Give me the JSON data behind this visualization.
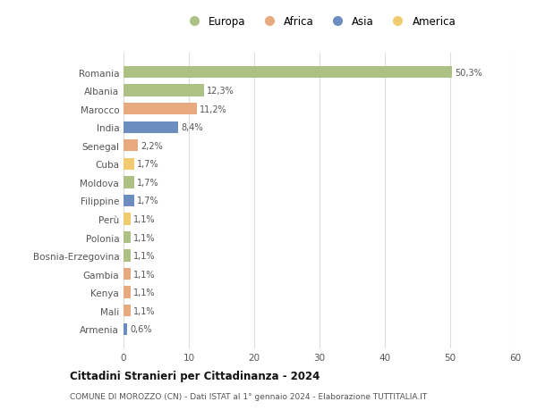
{
  "countries": [
    "Romania",
    "Albania",
    "Marocco",
    "India",
    "Senegal",
    "Cuba",
    "Moldova",
    "Filippine",
    "Perù",
    "Polonia",
    "Bosnia-Erzegovina",
    "Gambia",
    "Kenya",
    "Mali",
    "Armenia"
  ],
  "values": [
    50.3,
    12.3,
    11.2,
    8.4,
    2.2,
    1.7,
    1.7,
    1.7,
    1.1,
    1.1,
    1.1,
    1.1,
    1.1,
    1.1,
    0.6
  ],
  "labels": [
    "50,3%",
    "12,3%",
    "11,2%",
    "8,4%",
    "2,2%",
    "1,7%",
    "1,7%",
    "1,7%",
    "1,1%",
    "1,1%",
    "1,1%",
    "1,1%",
    "1,1%",
    "1,1%",
    "0,6%"
  ],
  "continents": [
    "Europa",
    "Europa",
    "Africa",
    "Asia",
    "Africa",
    "America",
    "Europa",
    "Asia",
    "America",
    "Europa",
    "Europa",
    "Africa",
    "Africa",
    "Africa",
    "Asia"
  ],
  "continent_colors": {
    "Europa": "#aec185",
    "Africa": "#e8a97e",
    "Asia": "#6b8dbf",
    "America": "#f0cc6e"
  },
  "legend_order": [
    "Europa",
    "Africa",
    "Asia",
    "America"
  ],
  "title": "Cittadini Stranieri per Cittadinanza - 2024",
  "subtitle": "COMUNE DI MOROZZO (CN) - Dati ISTAT al 1° gennaio 2024 - Elaborazione TUTTITALIA.IT",
  "xlim": [
    0,
    60
  ],
  "xticks": [
    0,
    10,
    20,
    30,
    40,
    50,
    60
  ],
  "bg_color": "#ffffff",
  "grid_color": "#dddddd",
  "bar_height": 0.65
}
